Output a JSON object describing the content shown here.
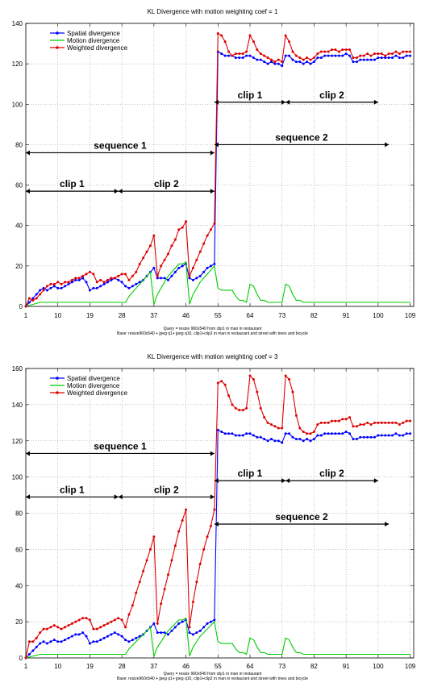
{
  "chart_data": [
    {
      "type": "line",
      "title": "KL Divergence with motion weighting coef = 1",
      "caption_line1": "Query = resize 960x540 from clip1 in man in restaurant",
      "caption_line2": "Base: resize960x540 + jpeg q1+ jpeg q10, clip1+clip2 in man in restaurant and street with trees and bicycle",
      "xlim": [
        1,
        110
      ],
      "ylim": [
        0,
        140
      ],
      "xticks": [
        1,
        10,
        19,
        28,
        37,
        46,
        55,
        64,
        73,
        82,
        91,
        100,
        109
      ],
      "yticks": [
        0,
        20,
        40,
        60,
        80,
        100,
        120,
        140
      ],
      "grid": true,
      "legend_position": "upper-left",
      "series": [
        {
          "name": "Spatial divergence",
          "color": "#0000ff",
          "marker": "dot",
          "values": [
            0,
            2,
            4,
            6,
            8,
            9,
            8,
            9,
            10,
            9,
            9,
            10,
            11,
            12,
            13,
            13,
            14,
            12,
            8,
            9,
            9,
            10,
            11,
            12,
            13,
            14,
            13,
            12,
            10,
            9,
            10,
            11,
            12,
            13,
            15,
            17,
            19,
            14,
            14,
            14,
            13,
            15,
            17,
            19,
            20,
            21,
            14,
            13,
            14,
            15,
            17,
            19,
            20,
            21,
            126,
            125,
            124,
            124,
            124,
            123,
            123,
            123,
            124,
            124,
            123,
            122,
            122,
            121,
            120,
            121,
            120,
            120,
            119,
            124,
            124,
            122,
            121,
            121,
            120,
            121,
            120,
            121,
            123,
            123,
            124,
            124,
            124,
            124,
            124,
            124,
            125,
            124,
            121,
            121,
            122,
            122,
            122,
            122,
            122,
            123,
            123,
            123,
            123,
            123,
            124,
            123,
            123,
            124,
            124
          ]
        },
        {
          "name": "Motion divergence",
          "color": "#00cc00",
          "marker": "none",
          "values": [
            0,
            0.5,
            1,
            1.5,
            2,
            2,
            2,
            2,
            2,
            2,
            2,
            2,
            2,
            2,
            2,
            2,
            2,
            2,
            2,
            2,
            2,
            2,
            2,
            2,
            2,
            2,
            2,
            2,
            2,
            5,
            7,
            9,
            11,
            13,
            15,
            17,
            1,
            6,
            9,
            12,
            15,
            17,
            19,
            21,
            21,
            22,
            1,
            6,
            9,
            12,
            14,
            16,
            18,
            20,
            9,
            8,
            8,
            8,
            8,
            5,
            3,
            3,
            2,
            11,
            10,
            6,
            3,
            3,
            2,
            2,
            2,
            2,
            2,
            11,
            10,
            6,
            3,
            3,
            2,
            2,
            2,
            2,
            2,
            2,
            2,
            2,
            2,
            2,
            2,
            2,
            2,
            2,
            2,
            2,
            2,
            2,
            2,
            2,
            2,
            2,
            2,
            2,
            2,
            2,
            2,
            2,
            2,
            2,
            2
          ]
        },
        {
          "name": "Weighted divergence",
          "color": "#dd0000",
          "marker": "dot",
          "values": [
            0,
            4,
            3,
            4,
            6,
            8,
            10,
            11,
            11,
            12,
            11,
            12,
            12,
            13,
            14,
            14,
            15,
            16,
            17,
            16,
            12,
            13,
            12,
            13,
            14,
            14,
            15,
            16,
            16,
            13,
            15,
            17,
            21,
            24,
            27,
            30,
            35,
            15,
            20,
            23,
            26,
            30,
            33,
            38,
            39,
            42,
            15,
            19,
            23,
            27,
            31,
            35,
            38,
            41,
            135,
            134,
            131,
            126,
            124,
            125,
            125,
            125,
            126,
            134,
            131,
            127,
            125,
            124,
            123,
            122,
            121,
            122,
            121,
            134,
            131,
            126,
            124,
            123,
            122,
            123,
            122,
            123,
            125,
            126,
            126,
            126,
            127,
            127,
            126,
            127,
            127,
            127,
            123,
            123,
            124,
            124,
            125,
            124,
            125,
            125,
            125,
            124,
            125,
            125,
            126,
            125,
            126,
            126,
            126
          ]
        }
      ],
      "annotations": [
        {
          "label": "clip 1",
          "x_from": 1,
          "x_to": 27,
          "y": 57
        },
        {
          "label": "clip 2",
          "x_from": 27,
          "x_to": 54,
          "y": 57
        },
        {
          "label": "sequence 1",
          "x_from": 1,
          "x_to": 54,
          "y": 76
        },
        {
          "label": "clip 1",
          "x_from": 54,
          "x_to": 74,
          "y": 101
        },
        {
          "label": "clip 2",
          "x_from": 74,
          "x_to": 100,
          "y": 101
        },
        {
          "label": "sequence 2",
          "x_from": 54,
          "x_to": 103,
          "y": 80
        }
      ]
    },
    {
      "type": "line",
      "title": "KL Divergence with motion weighting coef = 3",
      "caption_line1": "Query = resize 960x540 from clip1 in man in restaurant",
      "caption_line2": "Base: resize960x540 + jpeg q1+ jpeg q10, clip1+clip2 in man in restaurant and street with trees and bicycle",
      "xlim": [
        1,
        110
      ],
      "ylim": [
        0,
        160
      ],
      "xticks": [
        1,
        10,
        19,
        28,
        37,
        46,
        55,
        64,
        73,
        82,
        91,
        100,
        109
      ],
      "yticks": [
        0,
        20,
        40,
        60,
        80,
        100,
        120,
        140,
        160
      ],
      "grid": true,
      "legend_position": "upper-left",
      "series": [
        {
          "name": "Spatial divergence",
          "color": "#0000ff",
          "marker": "dot",
          "values": [
            0,
            2,
            4,
            6,
            8,
            9,
            8,
            9,
            10,
            9,
            9,
            10,
            11,
            12,
            13,
            13,
            14,
            12,
            8,
            9,
            9,
            10,
            11,
            12,
            13,
            14,
            13,
            12,
            10,
            9,
            10,
            11,
            12,
            13,
            15,
            17,
            19,
            14,
            14,
            14,
            13,
            15,
            17,
            19,
            20,
            21,
            14,
            13,
            14,
            15,
            17,
            19,
            20,
            21,
            126,
            125,
            124,
            124,
            124,
            123,
            123,
            123,
            124,
            124,
            123,
            122,
            122,
            121,
            120,
            121,
            120,
            120,
            119,
            124,
            124,
            122,
            121,
            121,
            120,
            121,
            120,
            121,
            123,
            123,
            124,
            124,
            124,
            124,
            124,
            124,
            125,
            124,
            121,
            121,
            122,
            122,
            122,
            122,
            122,
            123,
            123,
            123,
            123,
            123,
            124,
            123,
            123,
            124,
            124
          ]
        },
        {
          "name": "Motion divergence",
          "color": "#00cc00",
          "marker": "none",
          "values": [
            0,
            0.5,
            1,
            1.5,
            2,
            2,
            2,
            2,
            2,
            2,
            2,
            2,
            2,
            2,
            2,
            2,
            2,
            2,
            2,
            2,
            2,
            2,
            2,
            2,
            2,
            2,
            2,
            2,
            2,
            5,
            7,
            9,
            11,
            13,
            15,
            17,
            1,
            6,
            9,
            12,
            15,
            17,
            19,
            21,
            21,
            22,
            1,
            6,
            9,
            12,
            14,
            16,
            18,
            20,
            9,
            8,
            8,
            8,
            8,
            5,
            3,
            3,
            2,
            11,
            10,
            6,
            3,
            3,
            2,
            2,
            2,
            2,
            2,
            11,
            10,
            6,
            3,
            3,
            2,
            2,
            2,
            2,
            2,
            2,
            2,
            2,
            2,
            2,
            2,
            2,
            2,
            2,
            2,
            2,
            2,
            2,
            2,
            2,
            2,
            2,
            2,
            2,
            2,
            2,
            2,
            2,
            2,
            2,
            2
          ]
        },
        {
          "name": "Weighted divergence",
          "color": "#dd0000",
          "marker": "dot",
          "values": [
            0,
            9,
            9,
            11,
            14,
            16,
            16,
            17,
            18,
            17,
            16,
            17,
            18,
            19,
            20,
            21,
            22,
            22,
            21,
            16,
            16,
            17,
            18,
            19,
            20,
            21,
            22,
            21,
            17,
            24,
            29,
            36,
            42,
            48,
            54,
            60,
            67,
            19,
            30,
            38,
            46,
            54,
            62,
            70,
            76,
            82,
            17,
            31,
            42,
            52,
            60,
            67,
            73,
            82,
            152,
            153,
            151,
            145,
            140,
            138,
            137,
            137,
            138,
            156,
            154,
            147,
            138,
            133,
            130,
            129,
            128,
            127,
            127,
            156,
            154,
            147,
            134,
            127,
            125,
            124,
            124,
            125,
            129,
            130,
            130,
            130,
            131,
            131,
            131,
            132,
            132,
            133,
            128,
            128,
            129,
            129,
            130,
            129,
            130,
            130,
            130,
            130,
            130,
            130,
            130,
            129,
            130,
            131,
            131
          ]
        }
      ],
      "annotations": [
        {
          "label": "clip 1",
          "x_from": 1,
          "x_to": 27,
          "y": 89
        },
        {
          "label": "clip 2",
          "x_from": 27,
          "x_to": 54,
          "y": 89
        },
        {
          "label": "sequence 1",
          "x_from": 1,
          "x_to": 54,
          "y": 113
        },
        {
          "label": "clip 1",
          "x_from": 54,
          "x_to": 74,
          "y": 98
        },
        {
          "label": "clip 2",
          "x_from": 74,
          "x_to": 100,
          "y": 98
        },
        {
          "label": "sequence 2",
          "x_from": 54,
          "x_to": 103,
          "y": 74
        }
      ]
    }
  ]
}
